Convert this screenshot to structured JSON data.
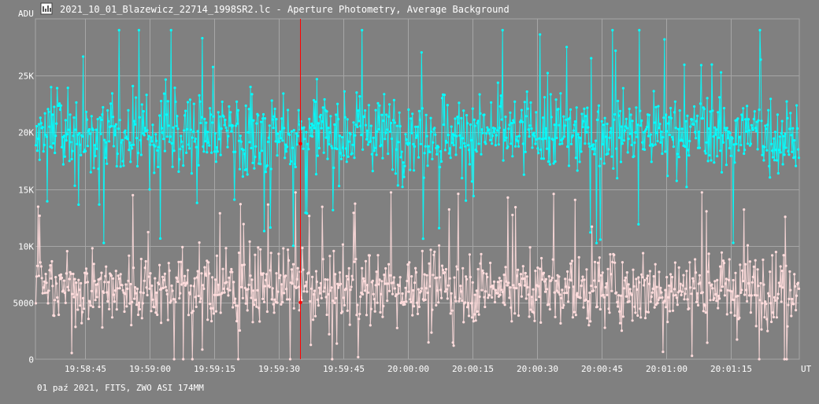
{
  "window": {
    "title": "2021_10_01_Blazewicz_22714_1998SR2.lc - Aperture Photometry, Average Background",
    "icon": "lightcurve-app-icon"
  },
  "footer": {
    "caption": "01 paź 2021, FITS, ZWO ASI 174MM"
  },
  "colors": {
    "background": "#808080",
    "grid": "#a6a6a6",
    "series_target": "#00ffff",
    "series_background": "#ffdcdc",
    "cursor": "#ff0000"
  },
  "chart_data": {
    "type": "scatter",
    "title": "2021_10_01_Blazewicz_22714_1998SR2.lc - Aperture Photometry, Average Background",
    "ylabel": "ADU",
    "xlabel": "UT",
    "ylim": [
      0,
      30000
    ],
    "xlim": [
      "19:58:33.5",
      "20:01:31"
    ],
    "x_ticks": [
      "19:58:45",
      "19:59:00",
      "19:59:15",
      "19:59:30",
      "19:59:45",
      "20:00:00",
      "20:00:15",
      "20:00:30",
      "20:00:45",
      "20:01:00",
      "20:01:15"
    ],
    "y_ticks": [
      {
        "value": 0,
        "label": "0"
      },
      {
        "value": 5000,
        "label": "5000"
      },
      {
        "value": 10000,
        "label": "10K"
      },
      {
        "value": 15000,
        "label": "15K"
      },
      {
        "value": 20000,
        "label": "20K"
      },
      {
        "value": 25000,
        "label": "25K"
      }
    ],
    "grid": true,
    "markers": "points connected by lines",
    "point_count_per_series": 1000,
    "series": [
      {
        "color": "#00ffff",
        "mean": 19900,
        "spread_min": 10000,
        "spread_max": 29000,
        "typical_min": 16000,
        "typical_max": 24000
      },
      {
        "color": "#ffdcdc",
        "mean": 6300,
        "spread_min": 0,
        "spread_max": 14700,
        "typical_min": 3000,
        "typical_max": 10000
      }
    ],
    "cursor": {
      "x": "19:59:35",
      "readings": [
        {
          "series": 0,
          "y": 19000
        },
        {
          "series": 1,
          "y": 5000
        }
      ]
    }
  }
}
